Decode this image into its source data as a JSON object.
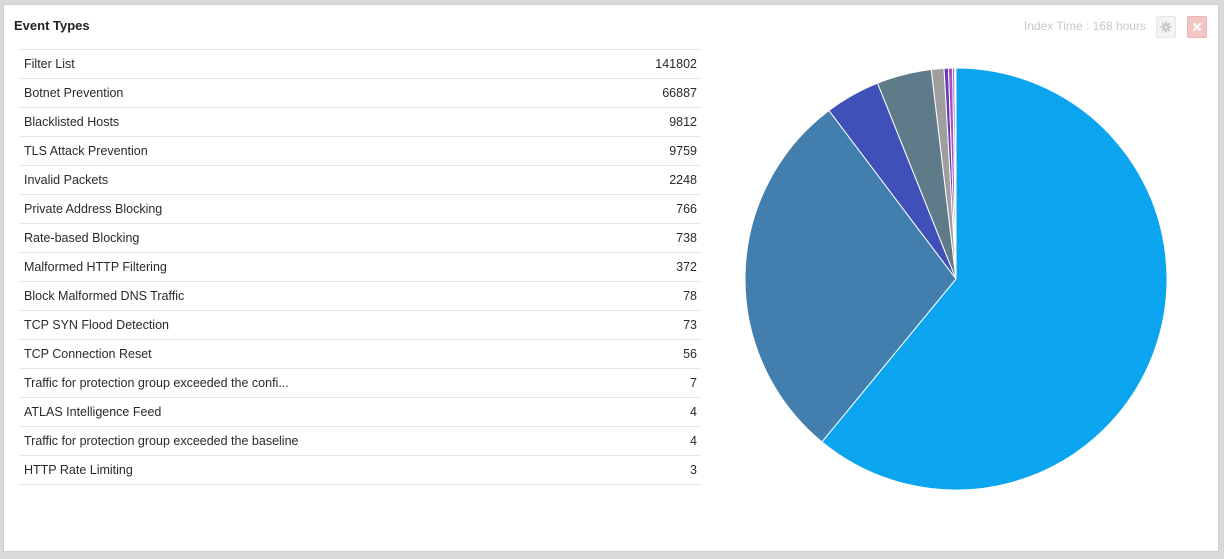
{
  "panel": {
    "title": "Event Types",
    "index_time": "Index Time : 168 hours",
    "settings_icon": "gear-icon",
    "close_icon": "close-icon"
  },
  "table": {
    "rows": [
      {
        "name": "Filter List",
        "count": "141802"
      },
      {
        "name": "Botnet Prevention",
        "count": "66887"
      },
      {
        "name": "Blacklisted Hosts",
        "count": "9812"
      },
      {
        "name": "TLS Attack Prevention",
        "count": "9759"
      },
      {
        "name": "Invalid Packets",
        "count": "2248"
      },
      {
        "name": "Private Address Blocking",
        "count": "766"
      },
      {
        "name": "Rate-based Blocking",
        "count": "738"
      },
      {
        "name": "Malformed HTTP Filtering",
        "count": "372"
      },
      {
        "name": "Block Malformed DNS Traffic",
        "count": "78"
      },
      {
        "name": "TCP SYN Flood Detection",
        "count": "73"
      },
      {
        "name": "TCP Connection Reset",
        "count": "56"
      },
      {
        "name": "Traffic for protection group exceeded the confi...",
        "count": "7"
      },
      {
        "name": "ATLAS Intelligence Feed",
        "count": "4"
      },
      {
        "name": "Traffic for protection group exceeded the baseline",
        "count": "4"
      },
      {
        "name": "HTTP Rate Limiting",
        "count": "3"
      }
    ]
  },
  "chart_data": {
    "type": "pie",
    "slices": [
      {
        "label": "Filter List",
        "value": 141802,
        "color": "#0ba5ef"
      },
      {
        "label": "Botnet Prevention",
        "value": 66887,
        "color": "#427fae"
      },
      {
        "label": "Blacklisted Hosts",
        "value": 9812,
        "color": "#3f50b9"
      },
      {
        "label": "TLS Attack Prevention",
        "value": 9759,
        "color": "#5f7b8a"
      },
      {
        "label": "Invalid Packets",
        "value": 2248,
        "color": "#9e9e9e"
      },
      {
        "label": "Private Address Blocking",
        "value": 766,
        "color": "#6b3bb2"
      },
      {
        "label": "Rate-based Blocking",
        "value": 738,
        "color": "#a64fc2"
      },
      {
        "label": "Malformed HTTP Filtering",
        "value": 372,
        "color": "#7b5cc9"
      },
      {
        "label": "Block Malformed DNS Traffic",
        "value": 78,
        "color": "#3aa76d"
      },
      {
        "label": "TCP SYN Flood Detection",
        "value": 73,
        "color": "#e8a33a"
      },
      {
        "label": "TCP Connection Reset",
        "value": 56,
        "color": "#d9534f"
      },
      {
        "label": "Traffic for protection group exceeded the confi...",
        "value": 7,
        "color": "#8bc34a"
      },
      {
        "label": "ATLAS Intelligence Feed",
        "value": 4,
        "color": "#ff9800"
      },
      {
        "label": "Traffic for protection group exceeded the baseline",
        "value": 4,
        "color": "#00bcd4"
      },
      {
        "label": "HTTP Rate Limiting",
        "value": 3,
        "color": "#795548"
      }
    ],
    "start_direction": "top",
    "slice_border_color": "#ffffff"
  }
}
